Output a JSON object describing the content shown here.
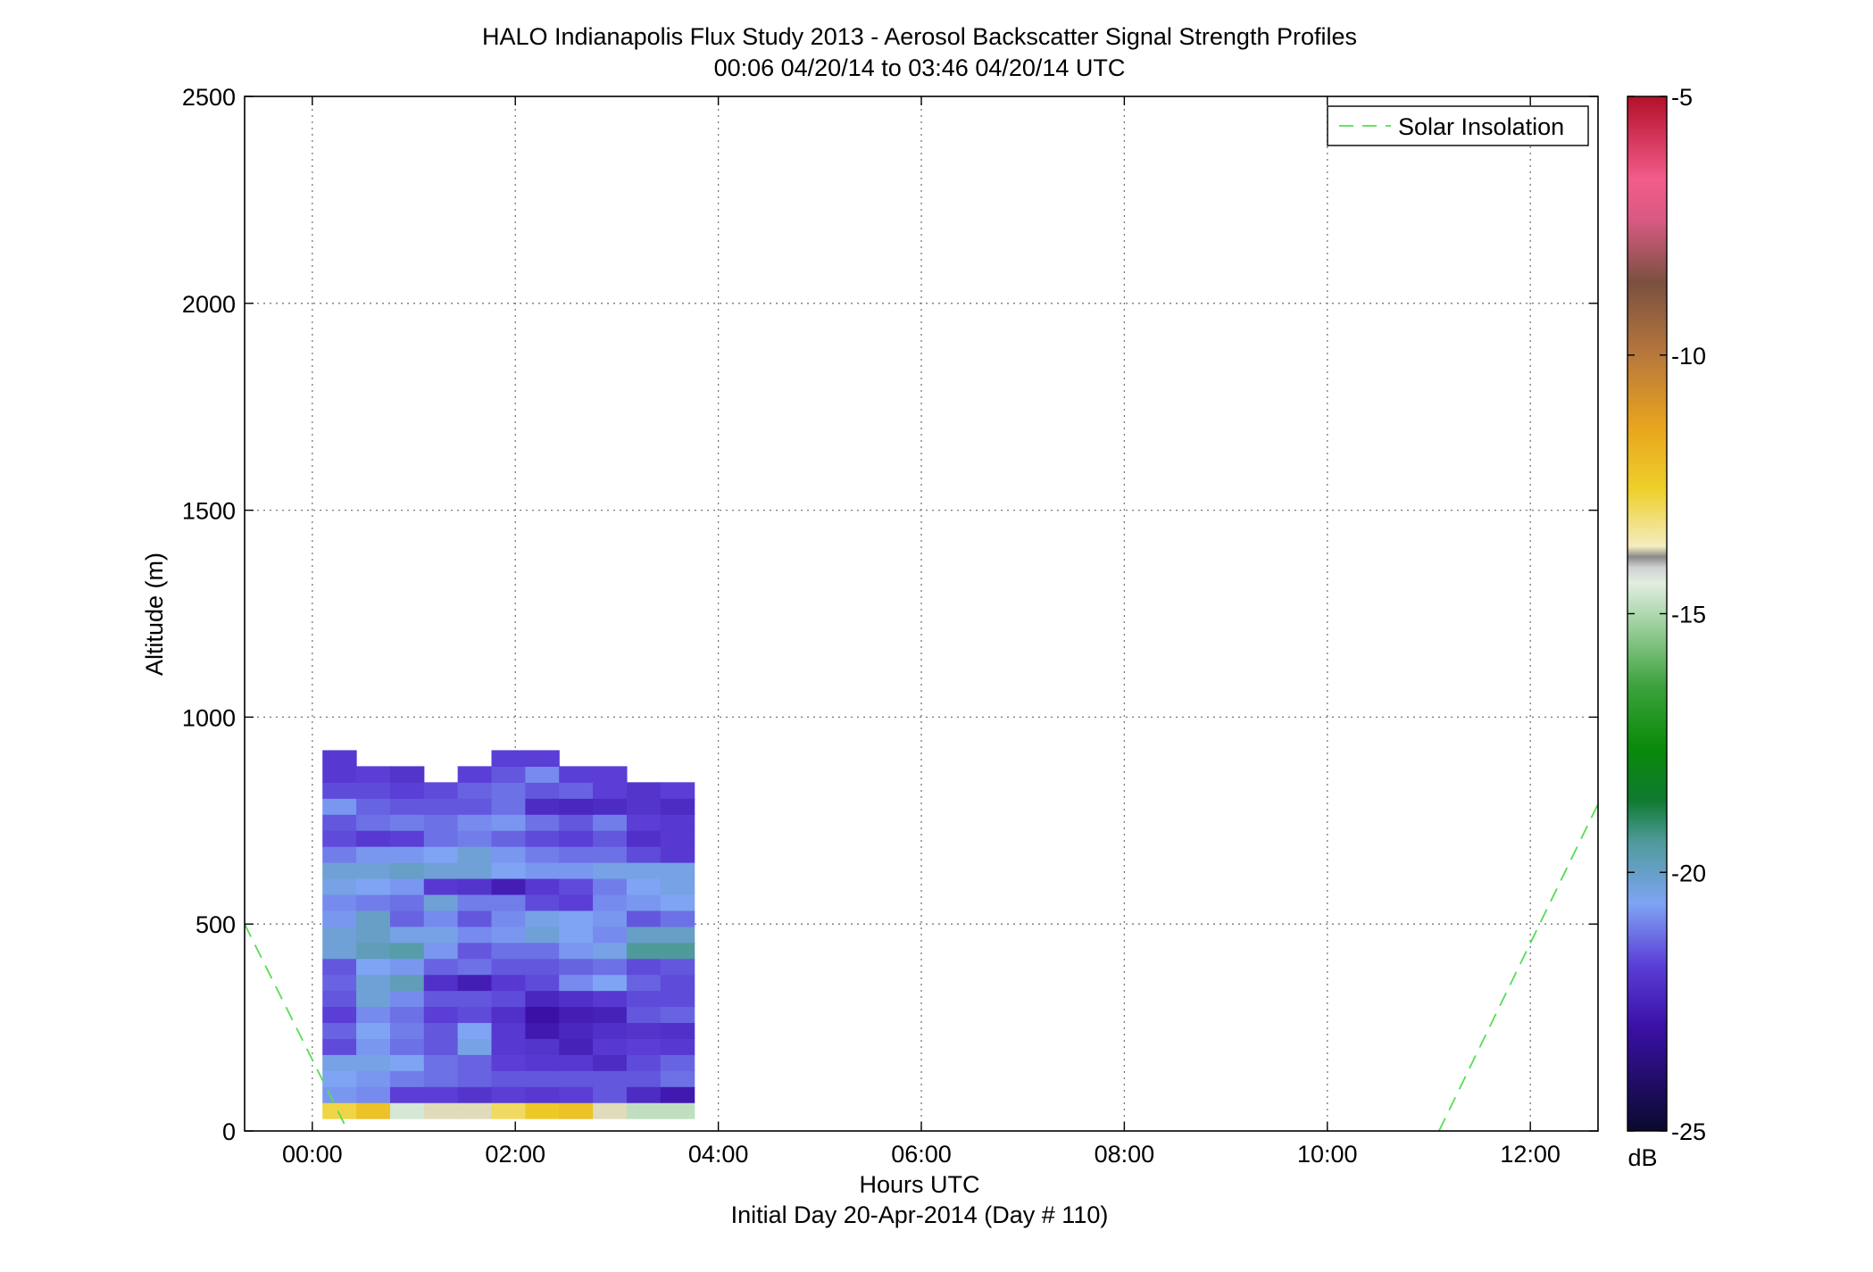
{
  "figure": {
    "title_line1": "HALO Indianapolis Flux Study 2013 - Aerosol Backscatter Signal Strength Profiles",
    "title_line2": "00:06 04/20/14 to 03:46 04/20/14  UTC",
    "caption": "Initial Day 20-Apr-2014 (Day # 110)"
  },
  "chart_data": {
    "type": "heatmap",
    "title": "HALO Indianapolis Flux Study 2013 - Aerosol Backscatter Signal Strength Profiles",
    "subtitle": "00:06 04/20/14 to 03:46 04/20/14  UTC",
    "xlabel": "Hours UTC",
    "ylabel": "Altitude (m)",
    "xlim": [
      -0.667,
      12.667
    ],
    "ylim": [
      0,
      2500
    ],
    "x_ticks": [
      0,
      2,
      4,
      6,
      8,
      10,
      12
    ],
    "x_tick_labels": [
      "00:00",
      "02:00",
      "04:00",
      "06:00",
      "08:00",
      "10:00",
      "12:00"
    ],
    "y_ticks": [
      0,
      500,
      1000,
      1500,
      2000,
      2500
    ],
    "y_tick_labels": [
      "0",
      "500",
      "1000",
      "1500",
      "2000",
      "2500"
    ],
    "grid": true,
    "legend": {
      "placement": "top-right",
      "entries": [
        {
          "label": "Solar Insolation",
          "color": "#55dd55",
          "style": "dashed"
        }
      ]
    },
    "colorbar": {
      "label": "dB",
      "range": [
        -25,
        -5
      ],
      "ticks": [
        -5,
        -10,
        -15,
        -20,
        -25
      ],
      "tick_labels": [
        "-5",
        "-10",
        "-15",
        "-20",
        "-25"
      ]
    },
    "heatmap": {
      "time_start": 0.1,
      "time_step": 0.333,
      "alt_start": 30,
      "alt_step": 38.7,
      "z_dB": [
        [
          -13.8,
          -13.2,
          -15.6,
          -14.8,
          -14.8,
          -14.0,
          -13.4,
          -13.2,
          -14.8,
          -15.9,
          -15.9
        ],
        [
          -21.3,
          -21.4,
          -22.0,
          -22.0,
          -22.2,
          -22.0,
          -22.1,
          -22.0,
          -21.8,
          -22.4,
          -22.8
        ],
        [
          -21.2,
          -21.3,
          -21.5,
          -21.6,
          -21.7,
          -21.8,
          -21.8,
          -21.8,
          -21.8,
          -21.8,
          -21.6
        ],
        [
          -21.1,
          -21.1,
          -21.2,
          -21.6,
          -21.7,
          -22.0,
          -22.1,
          -22.1,
          -22.4,
          -21.9,
          -21.7
        ],
        [
          -21.9,
          -21.3,
          -21.6,
          -21.8,
          -21.1,
          -22.1,
          -22.2,
          -22.6,
          -22.1,
          -22.0,
          -22.1
        ],
        [
          -21.7,
          -21.2,
          -21.5,
          -21.8,
          -21.2,
          -22.1,
          -22.8,
          -22.5,
          -22.3,
          -22.2,
          -22.3
        ],
        [
          -22.0,
          -21.4,
          -21.6,
          -22.0,
          -21.9,
          -22.3,
          -23.0,
          -22.7,
          -22.6,
          -21.8,
          -21.7
        ],
        [
          -21.8,
          -21.0,
          -21.4,
          -21.8,
          -21.8,
          -21.9,
          -22.5,
          -22.3,
          -22.1,
          -21.9,
          -21.9
        ],
        [
          -21.7,
          -21.0,
          -20.8,
          -22.3,
          -22.7,
          -22.1,
          -21.9,
          -21.4,
          -21.2,
          -21.7,
          -21.9
        ],
        [
          -21.8,
          -21.2,
          -21.3,
          -21.7,
          -21.6,
          -21.8,
          -21.8,
          -21.7,
          -21.6,
          -21.9,
          -21.8
        ],
        [
          -21.0,
          -20.8,
          -20.7,
          -21.3,
          -21.8,
          -21.6,
          -21.6,
          -21.3,
          -21.1,
          -20.6,
          -20.6
        ],
        [
          -21.0,
          -20.9,
          -21.1,
          -21.1,
          -21.4,
          -21.3,
          -21.0,
          -21.2,
          -21.4,
          -20.9,
          -20.9
        ],
        [
          -21.3,
          -20.9,
          -21.7,
          -21.4,
          -21.8,
          -21.4,
          -21.1,
          -21.2,
          -21.3,
          -21.8,
          -21.6
        ],
        [
          -21.4,
          -21.5,
          -21.6,
          -21.0,
          -21.5,
          -21.5,
          -21.9,
          -22.0,
          -21.4,
          -21.3,
          -21.2
        ],
        [
          -21.1,
          -21.2,
          -21.3,
          -22.1,
          -22.2,
          -22.7,
          -22.1,
          -21.9,
          -21.5,
          -21.2,
          -21.1
        ],
        [
          -21.0,
          -21.0,
          -20.9,
          -21.0,
          -21.0,
          -21.2,
          -21.3,
          -21.3,
          -21.1,
          -21.1,
          -21.1
        ],
        [
          -21.5,
          -21.3,
          -21.3,
          -21.2,
          -21.0,
          -21.3,
          -21.5,
          -21.6,
          -21.6,
          -21.9,
          -22.1
        ],
        [
          -21.9,
          -22.1,
          -22.0,
          -21.6,
          -21.5,
          -21.7,
          -21.9,
          -22.0,
          -21.8,
          -22.3,
          -22.1
        ],
        [
          -21.8,
          -21.6,
          -21.5,
          -21.6,
          -21.4,
          -21.3,
          -21.6,
          -21.8,
          -21.5,
          -22.0,
          -22.1
        ],
        [
          -21.3,
          -21.7,
          -21.8,
          -21.8,
          -21.8,
          -21.6,
          -22.4,
          -22.5,
          -22.4,
          -22.2,
          -22.4
        ],
        [
          -21.9,
          -21.9,
          -22.0,
          -21.9,
          -21.7,
          -21.6,
          -21.8,
          -21.7,
          -22.0,
          -22.2,
          -22.0
        ],
        [
          -22.1,
          -22.0,
          -22.2,
          null,
          -22.0,
          -21.8,
          -21.4,
          -22.0,
          -22.0,
          null,
          null
        ],
        [
          -22.1,
          null,
          null,
          null,
          null,
          -22.0,
          -22.0,
          null,
          null,
          null,
          null
        ]
      ]
    },
    "series": [
      {
        "name": "Solar Insolation",
        "style": "dashed",
        "segments": [
          {
            "x": [
              -0.667,
              0.35
            ],
            "y": [
              500,
              0
            ]
          },
          {
            "x": [
              11.1,
              12.667
            ],
            "y": [
              0,
              790
            ]
          }
        ]
      }
    ]
  }
}
